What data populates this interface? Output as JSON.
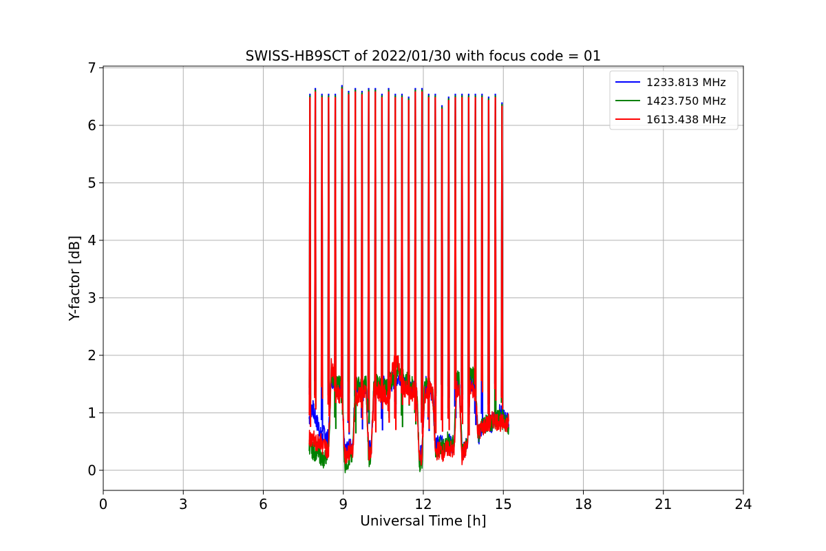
{
  "chart_data": {
    "type": "line",
    "title": "SWISS-HB9SCT of 2022/01/30 with focus code = 01",
    "xlabel": "Universal Time [h]",
    "ylabel": "Y-factor [dB]",
    "xlim": [
      0,
      24
    ],
    "ylim": [
      -0.35,
      7.03
    ],
    "xticks": [
      0,
      3,
      6,
      9,
      12,
      15,
      18,
      21,
      24
    ],
    "yticks": [
      0,
      1,
      2,
      3,
      4,
      5,
      6,
      7
    ],
    "grid": true,
    "legend_position": "top-right",
    "series": [
      {
        "name": "1233.813 MHz",
        "color": "#0000ff",
        "x": [
          7.72,
          7.78,
          7.85,
          7.92,
          8.0,
          8.08,
          8.15,
          8.22,
          8.3,
          8.38,
          8.45,
          8.55,
          8.65,
          8.75,
          8.85,
          8.95,
          9.05,
          9.15,
          9.25,
          9.35,
          9.45,
          9.55,
          9.65,
          9.75,
          9.85,
          9.95,
          10.05,
          10.15,
          10.25,
          10.35,
          10.45,
          10.55,
          10.65,
          10.75,
          10.85,
          10.95,
          11.05,
          11.15,
          11.25,
          11.35,
          11.45,
          11.55,
          11.65,
          11.75,
          11.85,
          11.95,
          12.05,
          12.15,
          12.25,
          12.35,
          12.45,
          12.55,
          12.65,
          12.75,
          12.85,
          12.95,
          13.05,
          13.15,
          13.25,
          13.35,
          13.45,
          13.55,
          13.65,
          13.75,
          13.85,
          13.95,
          14.05,
          14.15,
          14.25,
          14.35,
          14.45,
          14.55,
          14.65,
          14.75,
          14.85,
          14.95,
          15.05,
          15.15,
          15.2
        ],
        "y": [
          0.9,
          1.05,
          1.1,
          0.95,
          0.85,
          0.75,
          0.6,
          0.55,
          0.7,
          0.5,
          0.6,
          1.6,
          1.55,
          1.5,
          1.45,
          1.5,
          0.3,
          0.35,
          0.4,
          0.35,
          1.5,
          1.45,
          1.4,
          1.35,
          1.5,
          0.35,
          0.4,
          1.45,
          1.5,
          1.4,
          1.45,
          1.5,
          1.35,
          1.5,
          1.55,
          1.6,
          1.65,
          1.6,
          1.55,
          1.5,
          1.5,
          1.45,
          1.4,
          1.4,
          0.25,
          0.3,
          1.45,
          1.5,
          1.4,
          1.35,
          0.4,
          0.45,
          0.5,
          0.4,
          0.45,
          0.5,
          0.45,
          0.4,
          1.5,
          1.45,
          0.35,
          0.4,
          0.45,
          1.55,
          1.5,
          1.45,
          0.55,
          0.7,
          0.75,
          0.8,
          0.85,
          0.8,
          0.9,
          0.95,
          1.0,
          0.95,
          0.9,
          0.85,
          0.8
        ]
      },
      {
        "name": "1423.750 MHz",
        "color": "#008000",
        "x": [
          7.72,
          7.78,
          7.85,
          7.92,
          8.0,
          8.08,
          8.15,
          8.22,
          8.3,
          8.38,
          8.45,
          8.55,
          8.65,
          8.75,
          8.85,
          8.95,
          9.05,
          9.15,
          9.25,
          9.35,
          9.45,
          9.55,
          9.65,
          9.75,
          9.85,
          9.95,
          10.05,
          10.15,
          10.25,
          10.35,
          10.45,
          10.55,
          10.65,
          10.75,
          10.85,
          10.95,
          11.05,
          11.15,
          11.25,
          11.35,
          11.45,
          11.55,
          11.65,
          11.75,
          11.85,
          11.95,
          12.05,
          12.15,
          12.25,
          12.35,
          12.45,
          12.55,
          12.65,
          12.75,
          12.85,
          12.95,
          13.05,
          13.15,
          13.25,
          13.35,
          13.45,
          13.55,
          13.65,
          13.75,
          13.85,
          13.95,
          14.05,
          14.15,
          14.25,
          14.35,
          14.45,
          14.55,
          14.65,
          14.75,
          14.85,
          14.95,
          15.05,
          15.15,
          15.2
        ],
        "y": [
          0.45,
          0.4,
          0.35,
          0.3,
          0.35,
          0.3,
          0.25,
          0.15,
          0.2,
          0.3,
          0.4,
          1.65,
          1.6,
          1.55,
          1.5,
          1.55,
          0.1,
          0.15,
          0.2,
          0.25,
          1.55,
          1.5,
          1.45,
          1.45,
          1.55,
          0.2,
          0.25,
          1.5,
          1.55,
          1.5,
          1.45,
          1.55,
          1.4,
          1.55,
          1.6,
          1.7,
          1.75,
          1.7,
          1.6,
          1.55,
          1.55,
          1.5,
          1.5,
          1.45,
          0.1,
          0.15,
          1.55,
          1.6,
          1.5,
          1.4,
          0.3,
          0.35,
          0.45,
          0.4,
          0.45,
          0.55,
          0.5,
          0.45,
          1.6,
          1.55,
          0.3,
          0.4,
          0.45,
          1.7,
          1.65,
          1.6,
          0.6,
          0.75,
          0.8,
          0.8,
          0.85,
          0.8,
          0.85,
          0.9,
          0.9,
          0.85,
          0.85,
          0.8,
          0.75
        ]
      },
      {
        "name": "1613.438 MHz",
        "color": "#ff0000",
        "x": [
          7.72,
          7.78,
          7.85,
          7.92,
          8.0,
          8.08,
          8.15,
          8.22,
          8.3,
          8.38,
          8.45,
          8.55,
          8.65,
          8.75,
          8.85,
          8.95,
          9.05,
          9.15,
          9.25,
          9.35,
          9.45,
          9.55,
          9.65,
          9.75,
          9.85,
          9.95,
          10.05,
          10.15,
          10.25,
          10.35,
          10.45,
          10.55,
          10.65,
          10.75,
          10.85,
          10.95,
          11.05,
          11.15,
          11.25,
          11.35,
          11.45,
          11.55,
          11.65,
          11.75,
          11.85,
          11.95,
          12.05,
          12.15,
          12.25,
          12.35,
          12.45,
          12.55,
          12.65,
          12.75,
          12.85,
          12.95,
          13.05,
          13.15,
          13.25,
          13.35,
          13.45,
          13.55,
          13.65,
          13.75,
          13.85,
          13.95,
          14.05,
          14.15,
          14.25,
          14.35,
          14.45,
          14.55,
          14.65,
          14.75,
          14.85,
          14.95,
          15.05,
          15.15,
          15.2
        ],
        "y": [
          0.6,
          0.55,
          0.6,
          0.5,
          0.45,
          0.55,
          0.5,
          0.4,
          0.45,
          0.35,
          0.4,
          1.8,
          1.75,
          1.4,
          1.3,
          1.45,
          0.25,
          0.3,
          0.35,
          0.3,
          1.3,
          1.25,
          1.35,
          1.3,
          1.4,
          0.3,
          0.35,
          1.4,
          1.45,
          1.35,
          1.3,
          1.35,
          1.2,
          1.4,
          1.8,
          1.85,
          1.9,
          1.55,
          1.45,
          1.4,
          1.35,
          1.3,
          1.4,
          1.35,
          0.2,
          0.25,
          1.3,
          1.35,
          1.4,
          1.3,
          0.3,
          0.35,
          0.35,
          0.3,
          0.35,
          0.4,
          0.35,
          0.3,
          1.4,
          1.35,
          0.25,
          0.35,
          0.4,
          1.45,
          1.4,
          1.35,
          0.65,
          0.7,
          0.75,
          0.8,
          0.8,
          0.85,
          0.9,
          0.85,
          0.85,
          0.8,
          0.85,
          0.8,
          0.85
        ]
      }
    ],
    "spikes": {
      "x": [
        7.75,
        7.95,
        8.2,
        8.45,
        8.7,
        8.95,
        9.2,
        9.45,
        9.7,
        9.95,
        10.2,
        10.45,
        10.7,
        10.95,
        11.2,
        11.45,
        11.7,
        11.95,
        12.2,
        12.45,
        12.7,
        12.95,
        13.2,
        13.45,
        13.7,
        13.95,
        14.2,
        14.45,
        14.7,
        14.95
      ],
      "y": [
        6.55,
        6.65,
        6.55,
        6.55,
        6.55,
        6.7,
        6.6,
        6.65,
        6.6,
        6.65,
        6.65,
        6.55,
        6.65,
        6.55,
        6.55,
        6.5,
        6.65,
        6.65,
        6.55,
        6.55,
        6.35,
        6.5,
        6.55,
        6.55,
        6.55,
        6.55,
        6.55,
        6.5,
        6.55,
        6.4
      ]
    }
  }
}
